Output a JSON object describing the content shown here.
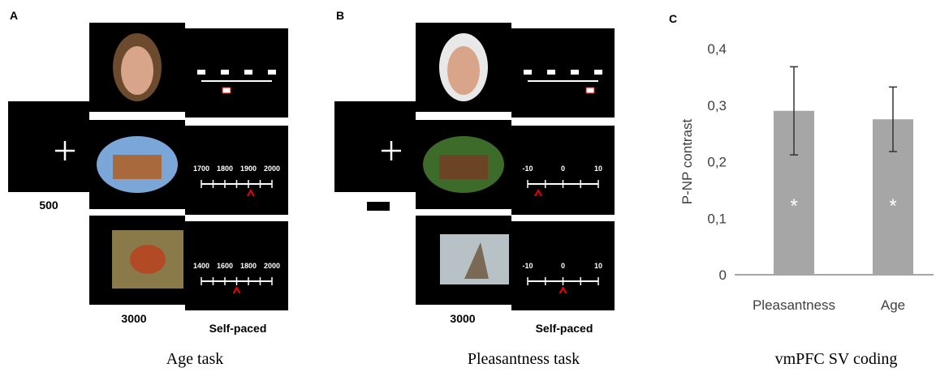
{
  "panels": [
    {
      "letter": "A",
      "fixation_duration": "500",
      "stimulus_duration": "3000",
      "response": "Self-paced",
      "scales": [
        [
          "1700",
          "1800",
          "1900",
          "2000"
        ],
        [
          "1400",
          "1600",
          "1800",
          "2000"
        ]
      ],
      "caption": "Age task"
    },
    {
      "letter": "B",
      "fixation_duration": null,
      "stimulus_duration": "3000",
      "response": "Self-paced",
      "scales": [
        [
          "-10",
          "0",
          "10"
        ],
        [
          "-10",
          "0",
          "10"
        ]
      ],
      "caption": "Pleasantness task"
    }
  ],
  "chart_data": {
    "type": "bar",
    "panel_letter": "C",
    "ylabel": "P-NP contrast",
    "categories": [
      "Pleasantness",
      "Age"
    ],
    "values": [
      0.29,
      0.275
    ],
    "errors": [
      0.078,
      0.057
    ],
    "annotations": [
      "*",
      "*"
    ],
    "color": "#a6a6a6",
    "ylim": [
      0,
      0.4
    ],
    "yticks": [
      0,
      {
        "value": 0.1,
        "label": "0,1"
      },
      {
        "value": 0.2,
        "label": "0,2"
      },
      {
        "value": 0.3,
        "label": "0,3"
      },
      {
        "value": 0.4,
        "label": "0,4"
      }
    ],
    "caption": "vmPFC SV coding"
  }
}
